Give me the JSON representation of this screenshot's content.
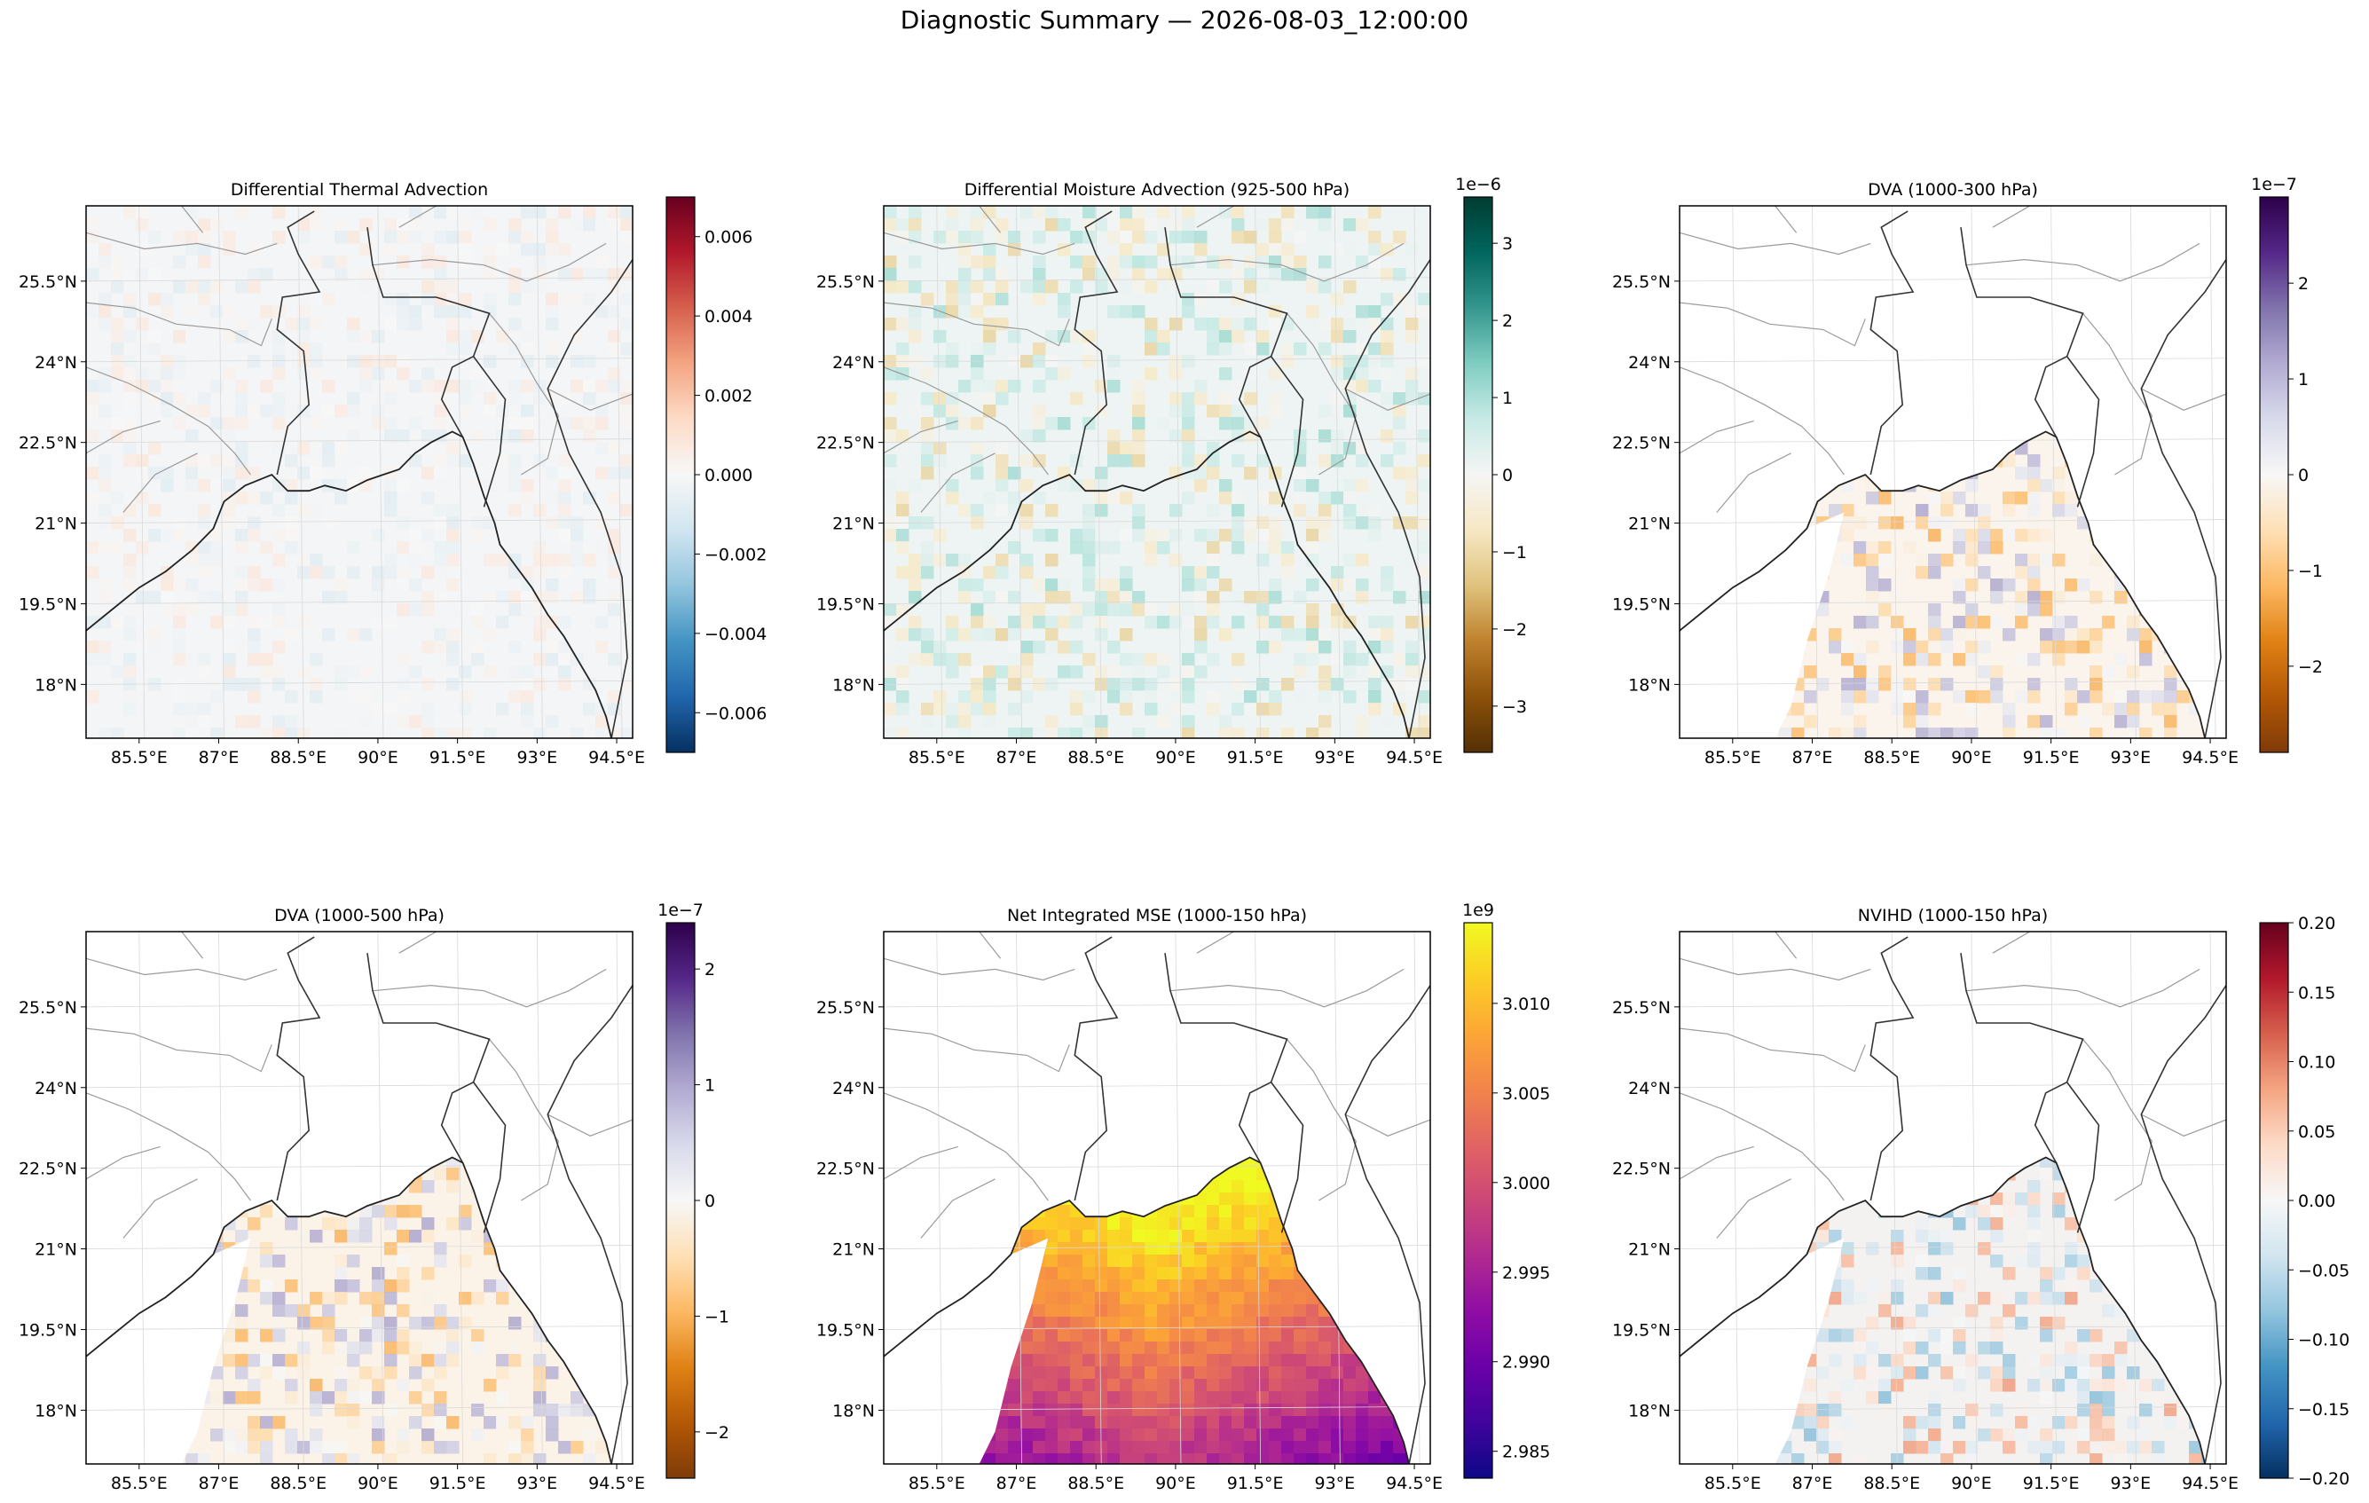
{
  "figure": {
    "title": "Diagnostic Summary — 2026-08-03_12:00:00"
  },
  "chart_data": [
    {
      "type": "heatmap",
      "title": "Differential Thermal Advection",
      "xlabel": "",
      "ylabel": "",
      "x_ticks": [
        "85.5°E",
        "87°E",
        "88.5°E",
        "90°E",
        "91.5°E",
        "93°E",
        "94.5°E"
      ],
      "y_ticks": [
        "25.5°N",
        "24°N",
        "22.5°N",
        "21°N",
        "19.5°N",
        "18°N"
      ],
      "xlim": [
        84.5,
        94.8
      ],
      "ylim": [
        17.0,
        26.9
      ],
      "colormap": "RdBu_r",
      "colorbar": {
        "range": [
          -0.007,
          0.007
        ],
        "ticks": [
          "0.006",
          "0.004",
          "0.002",
          "0.000",
          "−0.002",
          "−0.004",
          "−0.006"
        ],
        "tick_values": [
          0.006,
          0.004,
          0.002,
          0,
          -0.002,
          -0.004,
          -0.006
        ],
        "exponent": ""
      },
      "field": {
        "extent": "full",
        "background": "#f4f5f6"
      },
      "grid": true
    },
    {
      "type": "heatmap",
      "title": "Differential Moisture Advection (925-500 hPa)",
      "xlabel": "",
      "ylabel": "",
      "x_ticks": [
        "85.5°E",
        "87°E",
        "88.5°E",
        "90°E",
        "91.5°E",
        "93°E",
        "94.5°E"
      ],
      "y_ticks": [
        "25.5°N",
        "24°N",
        "22.5°N",
        "21°N",
        "19.5°N",
        "18°N"
      ],
      "xlim": [
        84.5,
        94.8
      ],
      "ylim": [
        17.0,
        26.9
      ],
      "colormap": "BrBG",
      "colorbar": {
        "range": [
          -3.6,
          3.6
        ],
        "ticks": [
          "3",
          "2",
          "1",
          "0",
          "−1",
          "−2",
          "−3"
        ],
        "tick_values": [
          3,
          2,
          1,
          0,
          -1,
          -2,
          -3
        ],
        "exponent": "1e−6"
      },
      "field": {
        "extent": "full",
        "background": "#eef4f3"
      },
      "grid": true
    },
    {
      "type": "heatmap",
      "title": "DVA (1000-300 hPa)",
      "xlabel": "",
      "ylabel": "",
      "x_ticks": [
        "85.5°E",
        "87°E",
        "88.5°E",
        "90°E",
        "91.5°E",
        "93°E",
        "94.5°E"
      ],
      "y_ticks": [
        "25.5°N",
        "24°N",
        "22.5°N",
        "21°N",
        "19.5°N",
        "18°N"
      ],
      "xlim": [
        84.5,
        94.8
      ],
      "ylim": [
        17.0,
        26.9
      ],
      "colormap": "PuOr",
      "colorbar": {
        "range": [
          -2.9,
          2.9
        ],
        "ticks": [
          "2",
          "1",
          "0",
          "−1",
          "−2"
        ],
        "tick_values": [
          2,
          1,
          0,
          -1,
          -2
        ],
        "exponent": "1e−7"
      },
      "field": {
        "extent": "ocean",
        "background": "#fbf4ec"
      },
      "grid": true
    },
    {
      "type": "heatmap",
      "title": "DVA (1000-500 hPa)",
      "xlabel": "",
      "ylabel": "",
      "x_ticks": [
        "85.5°E",
        "87°E",
        "88.5°E",
        "90°E",
        "91.5°E",
        "93°E",
        "94.5°E"
      ],
      "y_ticks": [
        "25.5°N",
        "24°N",
        "22.5°N",
        "21°N",
        "19.5°N",
        "18°N"
      ],
      "xlim": [
        84.5,
        94.8
      ],
      "ylim": [
        17.0,
        26.9
      ],
      "colormap": "PuOr",
      "colorbar": {
        "range": [
          -2.4,
          2.4
        ],
        "ticks": [
          "2",
          "1",
          "0",
          "−1",
          "−2"
        ],
        "tick_values": [
          2,
          1,
          0,
          -1,
          -2
        ],
        "exponent": "1e−7"
      },
      "field": {
        "extent": "ocean",
        "background": "#fbf3e8"
      },
      "grid": true
    },
    {
      "type": "heatmap",
      "title": "Net Integrated MSE (1000-150 hPa)",
      "xlabel": "",
      "ylabel": "",
      "x_ticks": [
        "85.5°E",
        "87°E",
        "88.5°E",
        "90°E",
        "91.5°E",
        "93°E",
        "94.5°E"
      ],
      "y_ticks": [
        "25.5°N",
        "24°N",
        "22.5°N",
        "21°N",
        "19.5°N",
        "18°N"
      ],
      "xlim": [
        84.5,
        94.8
      ],
      "ylim": [
        17.0,
        26.9
      ],
      "colormap": "plasma",
      "colorbar": {
        "range": [
          2.9835,
          3.0145
        ],
        "ticks": [
          "3.010",
          "3.005",
          "3.000",
          "2.995",
          "2.990",
          "2.985"
        ],
        "tick_values": [
          3.01,
          3.005,
          3.0,
          2.995,
          2.99,
          2.985
        ],
        "exponent": "1e9"
      },
      "field": {
        "extent": "ocean",
        "background": "#d76a5c"
      },
      "grid": true
    },
    {
      "type": "heatmap",
      "title": "NVIHD (1000-150 hPa)",
      "xlabel": "",
      "ylabel": "",
      "x_ticks": [
        "85.5°E",
        "87°E",
        "88.5°E",
        "90°E",
        "91.5°E",
        "93°E",
        "94.5°E"
      ],
      "y_ticks": [
        "25.5°N",
        "24°N",
        "22.5°N",
        "21°N",
        "19.5°N",
        "18°N"
      ],
      "xlim": [
        84.5,
        94.8
      ],
      "ylim": [
        17.0,
        26.9
      ],
      "colormap": "RdBu_r",
      "colorbar": {
        "range": [
          -0.2,
          0.2
        ],
        "ticks": [
          "0.20",
          "0.15",
          "0.10",
          "0.05",
          "0.00",
          "−0.05",
          "−0.10",
          "−0.15",
          "−0.20"
        ],
        "tick_values": [
          0.2,
          0.15,
          0.1,
          0.05,
          0,
          -0.05,
          -0.1,
          -0.15,
          -0.2
        ],
        "exponent": ""
      },
      "field": {
        "extent": "ocean",
        "background": "#f4f1f1"
      },
      "grid": true
    }
  ]
}
